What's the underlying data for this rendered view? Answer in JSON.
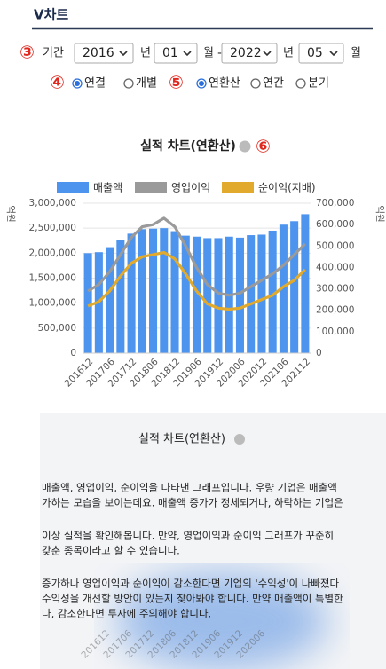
{
  "header": {
    "title": "V차트"
  },
  "period": {
    "marker": "③",
    "label": "기간",
    "start_year": "2016",
    "start_year_unit": "년",
    "start_month": "01",
    "start_month_unit": "월 -",
    "end_year": "2022",
    "end_year_unit": "년",
    "end_month": "05",
    "end_month_unit": "월"
  },
  "consolidation": {
    "marker": "④",
    "options": [
      "연결",
      "개별"
    ],
    "selected": 0
  },
  "basis": {
    "marker": "⑤",
    "options": [
      "연환산",
      "연간",
      "분기"
    ],
    "selected": 0
  },
  "chart_help_marker": "⑥",
  "chart_data": {
    "type": "bar_line",
    "title": "실적 차트(연환산)",
    "categories": [
      "201612",
      null,
      "201706",
      null,
      "201712",
      null,
      "201806",
      null,
      "201812",
      null,
      "201906",
      null,
      "201912",
      null,
      "202006",
      null,
      "202012",
      null,
      "202106",
      null,
      "202112"
    ],
    "series": [
      {
        "name": "매출액",
        "type": "bar",
        "color": "#4d94ee",
        "axis": "y",
        "values": [
          2000000,
          2020000,
          2120000,
          2270000,
          2390000,
          2480000,
          2490000,
          2500000,
          2440000,
          2350000,
          2330000,
          2300000,
          2300000,
          2330000,
          2310000,
          2360000,
          2370000,
          2450000,
          2570000,
          2640000,
          2780000
        ]
      },
      {
        "name": "영업이익",
        "type": "line",
        "color": "#9a9a9a",
        "axis": "y2",
        "values": [
          290000,
          320000,
          380000,
          460000,
          540000,
          590000,
          600000,
          630000,
          590000,
          500000,
          400000,
          320000,
          280000,
          270000,
          280000,
          310000,
          340000,
          370000,
          410000,
          460000,
          510000
        ]
      },
      {
        "name": "순이익(지배)",
        "type": "line",
        "color": "#e2aa2c",
        "axis": "y2",
        "values": [
          220000,
          240000,
          290000,
          360000,
          420000,
          450000,
          460000,
          470000,
          440000,
          370000,
          290000,
          230000,
          210000,
          205000,
          210000,
          230000,
          250000,
          270000,
          310000,
          340000,
          390000
        ]
      }
    ],
    "y_label": "억원",
    "y2_label": "억원",
    "ylim": [
      0,
      3000000
    ],
    "yticks": [
      0,
      {
        "value": 500000,
        "label": "500,000"
      },
      {
        "value": 1000000,
        "label": "1,000,000"
      },
      {
        "value": 1500000,
        "label": "1,500,000"
      },
      {
        "value": 2000000,
        "label": "2,000,000"
      },
      {
        "value": 2500000,
        "label": "2,500,000"
      },
      {
        "value": 3000000,
        "label": "3,000,000"
      }
    ],
    "y2lim": [
      0,
      700000
    ],
    "y2ticks": [
      0,
      {
        "value": 100000,
        "label": "100,000"
      },
      {
        "value": 200000,
        "label": "200,000"
      },
      {
        "value": 300000,
        "label": "300,000"
      },
      {
        "value": 400000,
        "label": "400,000"
      },
      {
        "value": 500000,
        "label": "500,000"
      },
      {
        "value": 600000,
        "label": "600,000"
      },
      {
        "value": 700000,
        "label": "700,000"
      }
    ],
    "grid": true
  },
  "popup": {
    "title": "실적 차트(연환산)",
    "paragraphs": [
      [
        "매출액, 영업이익, 순이익을 나타낸 그래프입니다. 우량 기업은 매출액",
        "가하는 모습을 보이는데요. 매출액 증가가 정체되거나, 하락하는 기업은"
      ],
      [
        "이상 실적을 확인해봅니다. 만약, 영업이익과 순이익 그래프가 꾸준히",
        "갖춘 종목이라고 할 수 있습니다."
      ],
      [
        "증가하나 영업이익과 순이익이 감소한다면 기업의 '수익성'이 나빠졌다",
        "수익성을 개선할 방안이 있는지 찾아봐야 합니다. 만약 매출액이 특별한",
        "나, 감소한다면 투자에 주의해야 합니다."
      ]
    ]
  }
}
